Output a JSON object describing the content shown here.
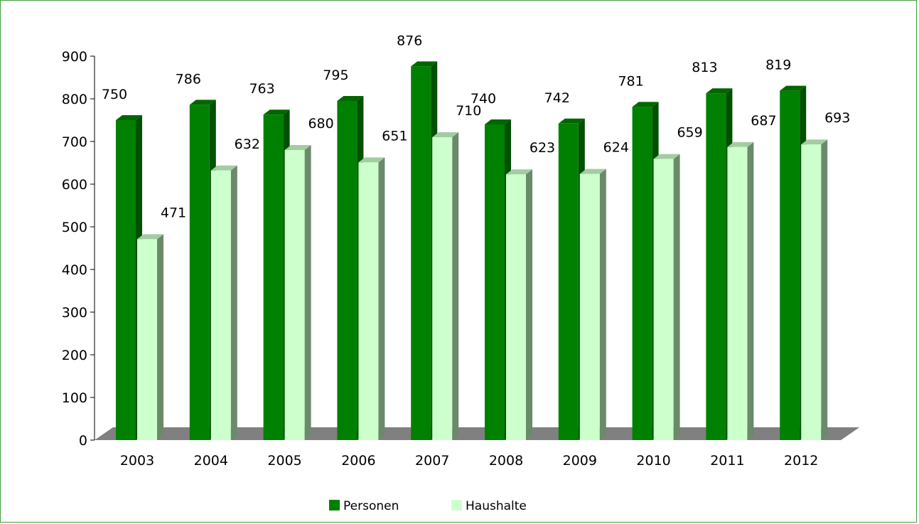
{
  "chart_data": {
    "type": "bar",
    "style": "3d-clustered-column",
    "categories": [
      "2003",
      "2004",
      "2005",
      "2006",
      "2007",
      "2008",
      "2009",
      "2010",
      "2011",
      "2012"
    ],
    "series": [
      {
        "name": "Personen",
        "color": "#008000",
        "values": [
          750,
          786,
          763,
          795,
          876,
          740,
          742,
          781,
          813,
          819
        ]
      },
      {
        "name": "Haushalte",
        "color": "#ccffcc",
        "values": [
          471,
          632,
          680,
          651,
          710,
          623,
          624,
          659,
          687,
          693
        ]
      }
    ],
    "ylim": [
      0,
      900
    ],
    "yticks": [
      0,
      100,
      200,
      300,
      400,
      500,
      600,
      700,
      800,
      900
    ],
    "ytick_labels": [
      "0",
      "100",
      "200",
      "300",
      "400",
      "500",
      "600",
      "700",
      "800",
      "900"
    ],
    "grid": false,
    "data_labels": true,
    "legend_position": "bottom",
    "title": "",
    "xlabel": "",
    "ylabel": ""
  },
  "colors": {
    "frame_border": "#41a03c",
    "floor": "#808080",
    "personen_side": "#005000",
    "personen_top": "#006600",
    "haushalte_side": "#6a8a6a",
    "haushalte_top": "#a3cca3"
  }
}
